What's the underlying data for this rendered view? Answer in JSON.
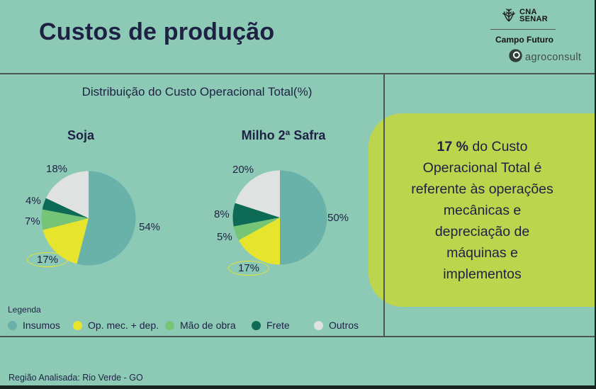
{
  "header": {
    "title": "Custos de produção"
  },
  "logos": {
    "cna_line1": "CNA",
    "cna_line2": "SENAR",
    "campo_futuro": "Campo Futuro",
    "agroconsult": "agroconsult"
  },
  "chart_data": {
    "type": "pie",
    "title": "Distribuição do Custo Operacional Total(%)",
    "colors": [
      "#68b2a9",
      "#e6e42c",
      "#76c577",
      "#0d6a54",
      "#e0e1e1"
    ],
    "legend_title": "Legenda",
    "legend": [
      "Insumos",
      "Op. mec. + dep.",
      "Mão de obra",
      "Frete",
      "Outros"
    ],
    "pies": [
      {
        "title": "Soja",
        "values": [
          54,
          17,
          7,
          4,
          18
        ],
        "labels": [
          "54%",
          "17%",
          "7%",
          "4%",
          "18%"
        ]
      },
      {
        "title": "Milho 2ª Safra",
        "values": [
          50,
          17,
          5,
          8,
          20
        ],
        "labels": [
          "50%",
          "17%",
          "5%",
          "8%",
          "20%"
        ]
      }
    ]
  },
  "callout": {
    "highlight": "17 %",
    "text": " do Custo Operacional Total é referente às operações mecânicas e depreciação de máquinas e implementos",
    "bg": "#bdd54c"
  },
  "footer": {
    "region": "Região Analisada: Rio Verde - GO"
  }
}
